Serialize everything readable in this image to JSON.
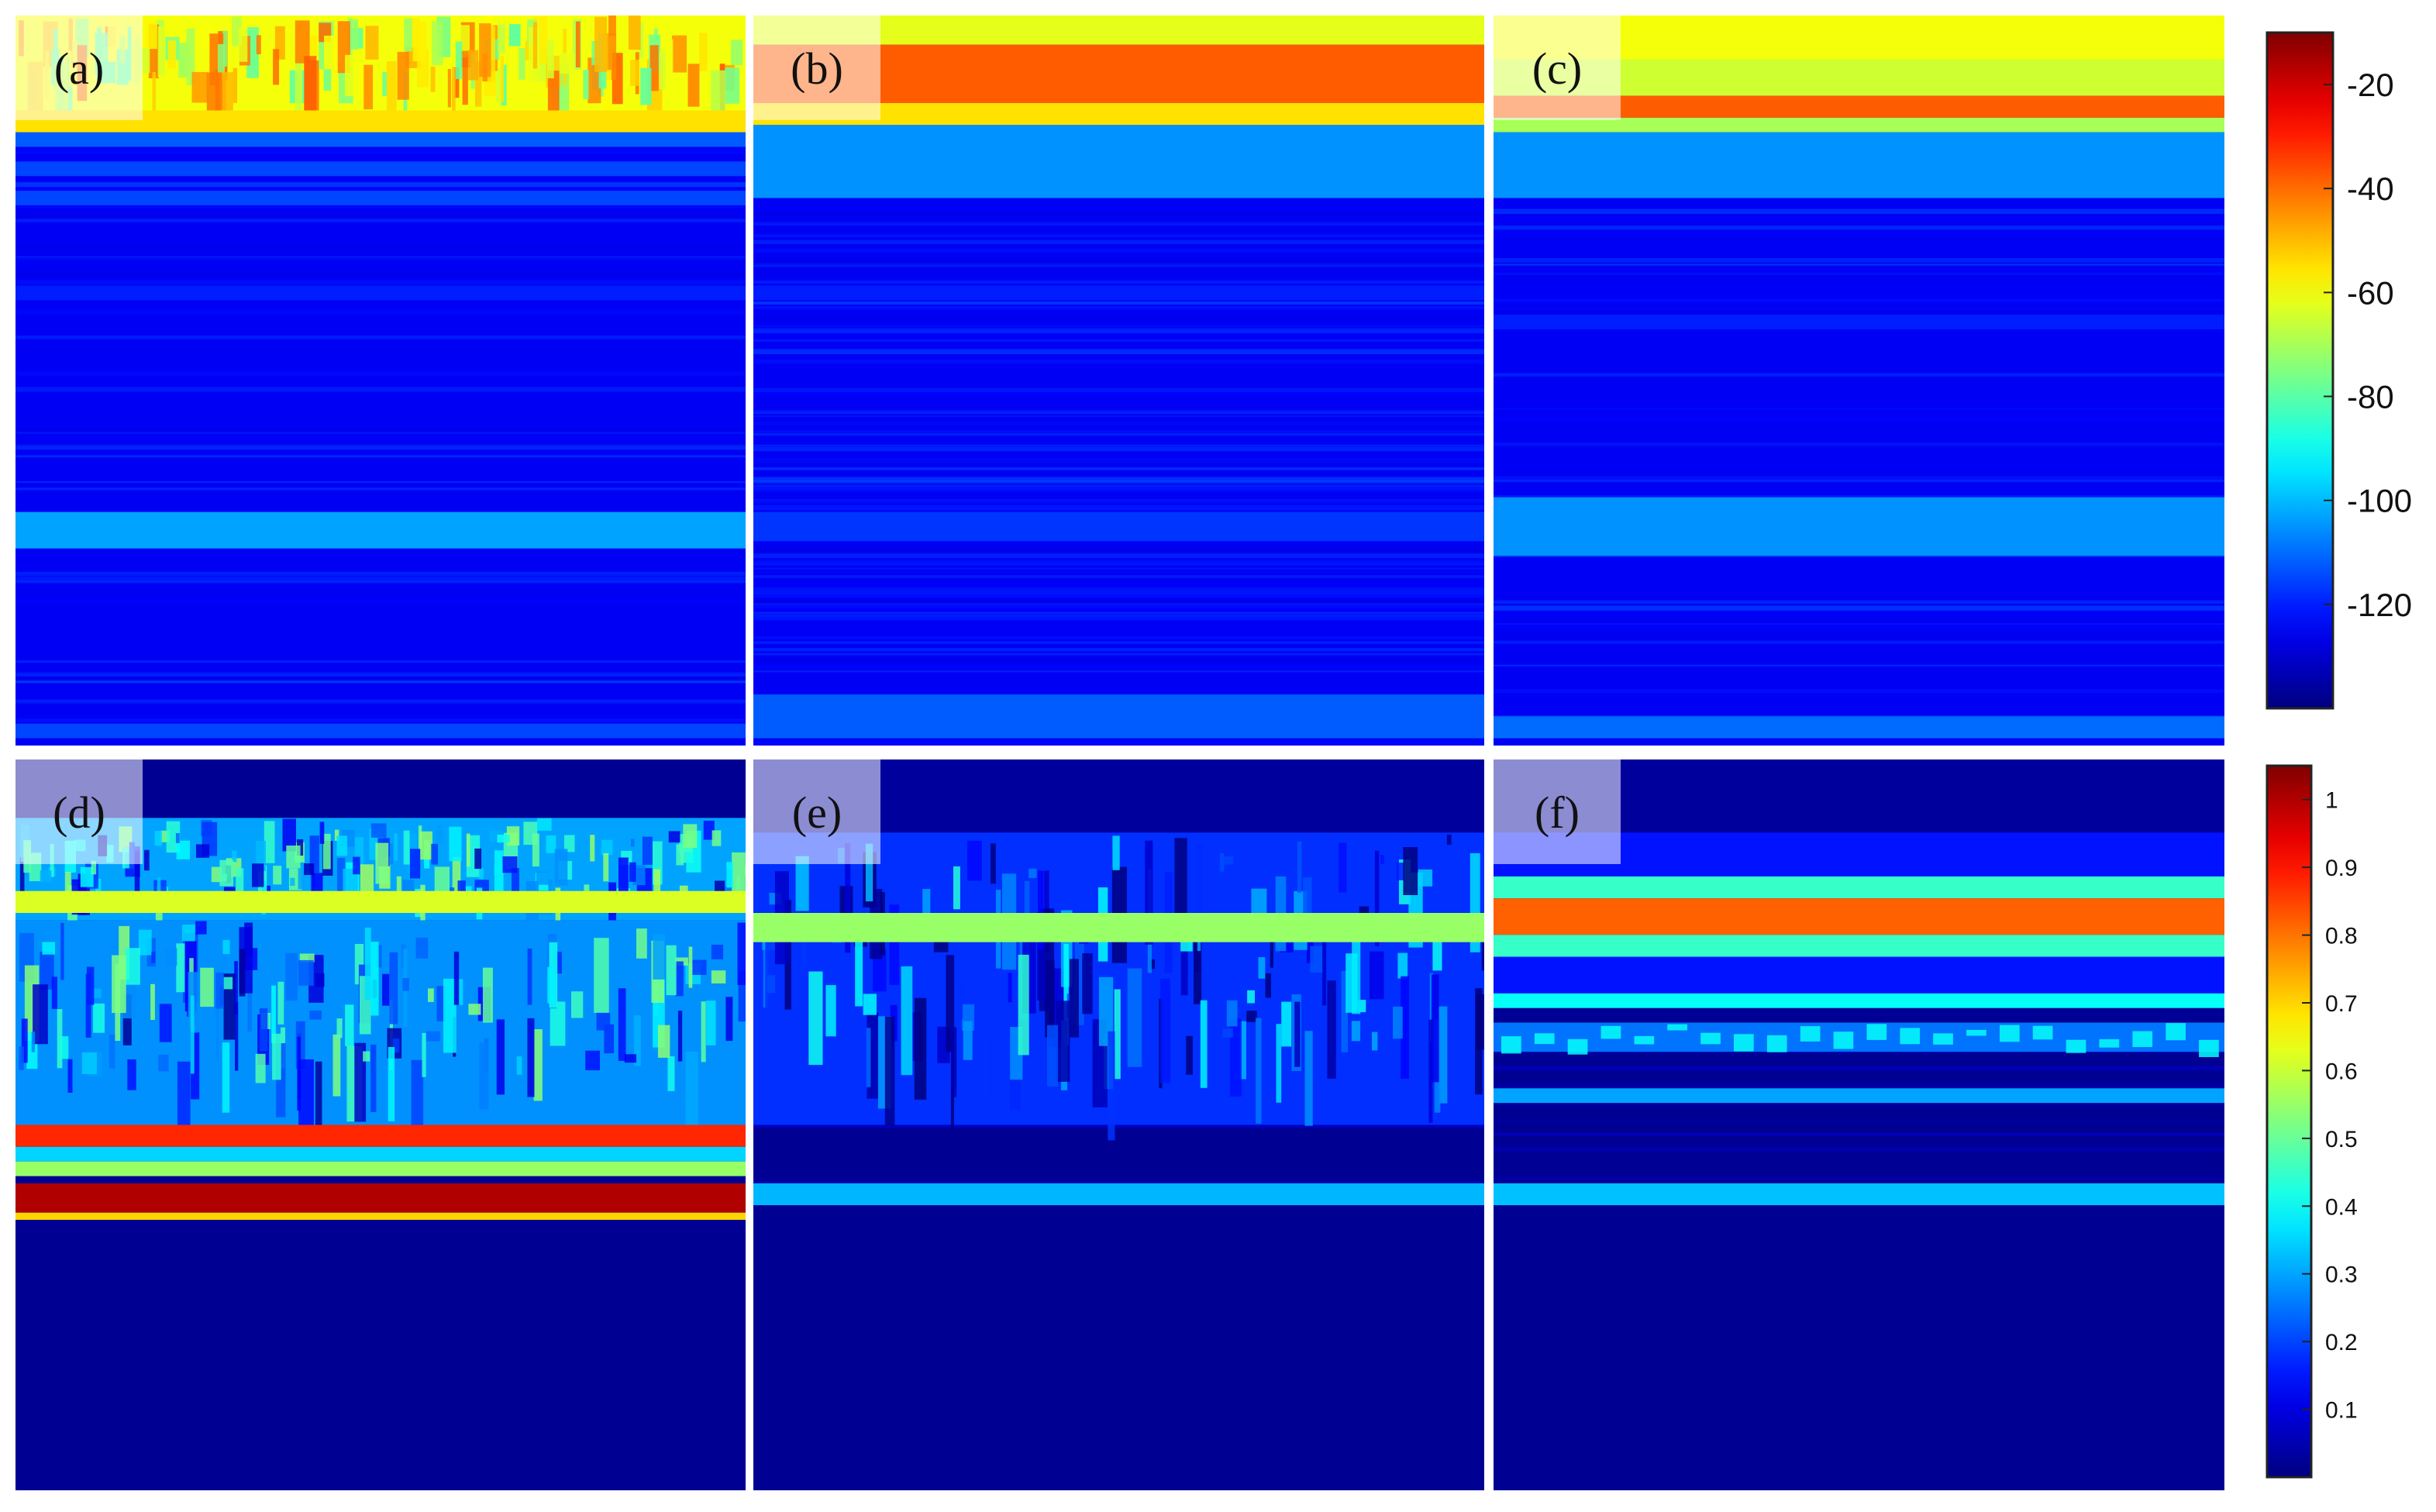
{
  "chart_data": [
    {
      "type": "heatmap",
      "panels": [
        {
          "label": "(a)",
          "bands": [
            {
              "y0": 0.0,
              "y1": 0.13,
              "level": -60,
              "texture": "strong"
            },
            {
              "y0": 0.13,
              "y1": 0.16,
              "level": -55
            },
            {
              "y0": 0.16,
              "y1": 0.18,
              "level": -112
            },
            {
              "y0": 0.2,
              "y1": 0.22,
              "level": -115
            },
            {
              "y0": 0.24,
              "y1": 0.26,
              "level": -115
            },
            {
              "y0": 0.37,
              "y1": 0.39,
              "level": -120
            },
            {
              "y0": 0.68,
              "y1": 0.73,
              "level": -103
            },
            {
              "y0": 0.97,
              "y1": 0.99,
              "level": -115
            }
          ]
        },
        {
          "label": "(b)",
          "bands": [
            {
              "y0": 0.0,
              "y1": 0.04,
              "level": -62
            },
            {
              "y0": 0.04,
              "y1": 0.12,
              "level": -38
            },
            {
              "y0": 0.12,
              "y1": 0.15,
              "level": -55
            },
            {
              "y0": 0.15,
              "y1": 0.25,
              "level": -105
            },
            {
              "y0": 0.37,
              "y1": 0.39,
              "level": -120
            },
            {
              "y0": 0.68,
              "y1": 0.72,
              "level": -117
            },
            {
              "y0": 0.93,
              "y1": 0.99,
              "level": -112
            }
          ],
          "streaks": true
        },
        {
          "label": "(c)",
          "bands": [
            {
              "y0": 0.0,
              "y1": 0.06,
              "level": -60
            },
            {
              "y0": 0.06,
              "y1": 0.11,
              "level": -65
            },
            {
              "y0": 0.11,
              "y1": 0.14,
              "level": -38
            },
            {
              "y0": 0.14,
              "y1": 0.16,
              "level": -70
            },
            {
              "y0": 0.16,
              "y1": 0.25,
              "level": -105
            },
            {
              "y0": 0.41,
              "y1": 0.43,
              "level": -120
            },
            {
              "y0": 0.66,
              "y1": 0.74,
              "level": -105
            },
            {
              "y0": 0.96,
              "y1": 0.99,
              "level": -110
            }
          ]
        }
      ],
      "colorbar": {
        "min": -140,
        "max": -10,
        "ticks": [
          -20,
          -40,
          -60,
          -80,
          -100,
          -120
        ],
        "colormap": "jet"
      }
    },
    {
      "type": "heatmap",
      "panels": [
        {
          "label": "(d)",
          "bands": [
            {
              "y0": 0.0,
              "y1": 0.08,
              "level": 0.02
            },
            {
              "y0": 0.08,
              "y1": 0.22,
              "level": 0.3,
              "texture": "spiky"
            },
            {
              "y0": 0.18,
              "y1": 0.21,
              "level": 0.62
            },
            {
              "y0": 0.22,
              "y1": 0.5,
              "level": 0.28,
              "texture": "spiky"
            },
            {
              "y0": 0.5,
              "y1": 0.53,
              "level": 0.88
            },
            {
              "y0": 0.53,
              "y1": 0.55,
              "level": 0.35
            },
            {
              "y0": 0.55,
              "y1": 0.57,
              "level": 0.55
            },
            {
              "y0": 0.58,
              "y1": 0.62,
              "level": 1.0
            },
            {
              "y0": 0.62,
              "y1": 0.63,
              "level": 0.7
            },
            {
              "y0": 0.63,
              "y1": 1.0,
              "level": 0.02
            }
          ]
        },
        {
          "label": "(e)",
          "bands": [
            {
              "y0": 0.0,
              "y1": 0.1,
              "level": 0.03
            },
            {
              "y0": 0.1,
              "y1": 0.5,
              "level": 0.18,
              "texture": "spiky"
            },
            {
              "y0": 0.21,
              "y1": 0.25,
              "level": 0.55
            },
            {
              "y0": 0.58,
              "y1": 0.61,
              "level": 0.32
            },
            {
              "y0": 0.61,
              "y1": 1.0,
              "level": 0.02
            }
          ]
        },
        {
          "label": "(f)",
          "bands": [
            {
              "y0": 0.0,
              "y1": 0.1,
              "level": 0.03
            },
            {
              "y0": 0.1,
              "y1": 0.16,
              "level": 0.15
            },
            {
              "y0": 0.16,
              "y1": 0.19,
              "level": 0.45
            },
            {
              "y0": 0.19,
              "y1": 0.24,
              "level": 0.82
            },
            {
              "y0": 0.24,
              "y1": 0.27,
              "level": 0.45
            },
            {
              "y0": 0.27,
              "y1": 0.32,
              "level": 0.15
            },
            {
              "y0": 0.32,
              "y1": 0.34,
              "level": 0.4
            },
            {
              "y0": 0.36,
              "y1": 0.4,
              "level": 0.25,
              "texture": "dashed"
            },
            {
              "y0": 0.45,
              "y1": 0.47,
              "level": 0.3
            },
            {
              "y0": 0.58,
              "y1": 0.61,
              "level": 0.33
            },
            {
              "y0": 0.61,
              "y1": 1.0,
              "level": 0.02
            }
          ]
        }
      ],
      "colorbar": {
        "min": 0,
        "max": 1.05,
        "ticks": [
          1,
          0.9,
          0.8,
          0.7,
          0.6,
          0.5,
          0.4,
          0.3,
          0.2,
          0.1
        ],
        "colormap": "jet"
      }
    }
  ]
}
